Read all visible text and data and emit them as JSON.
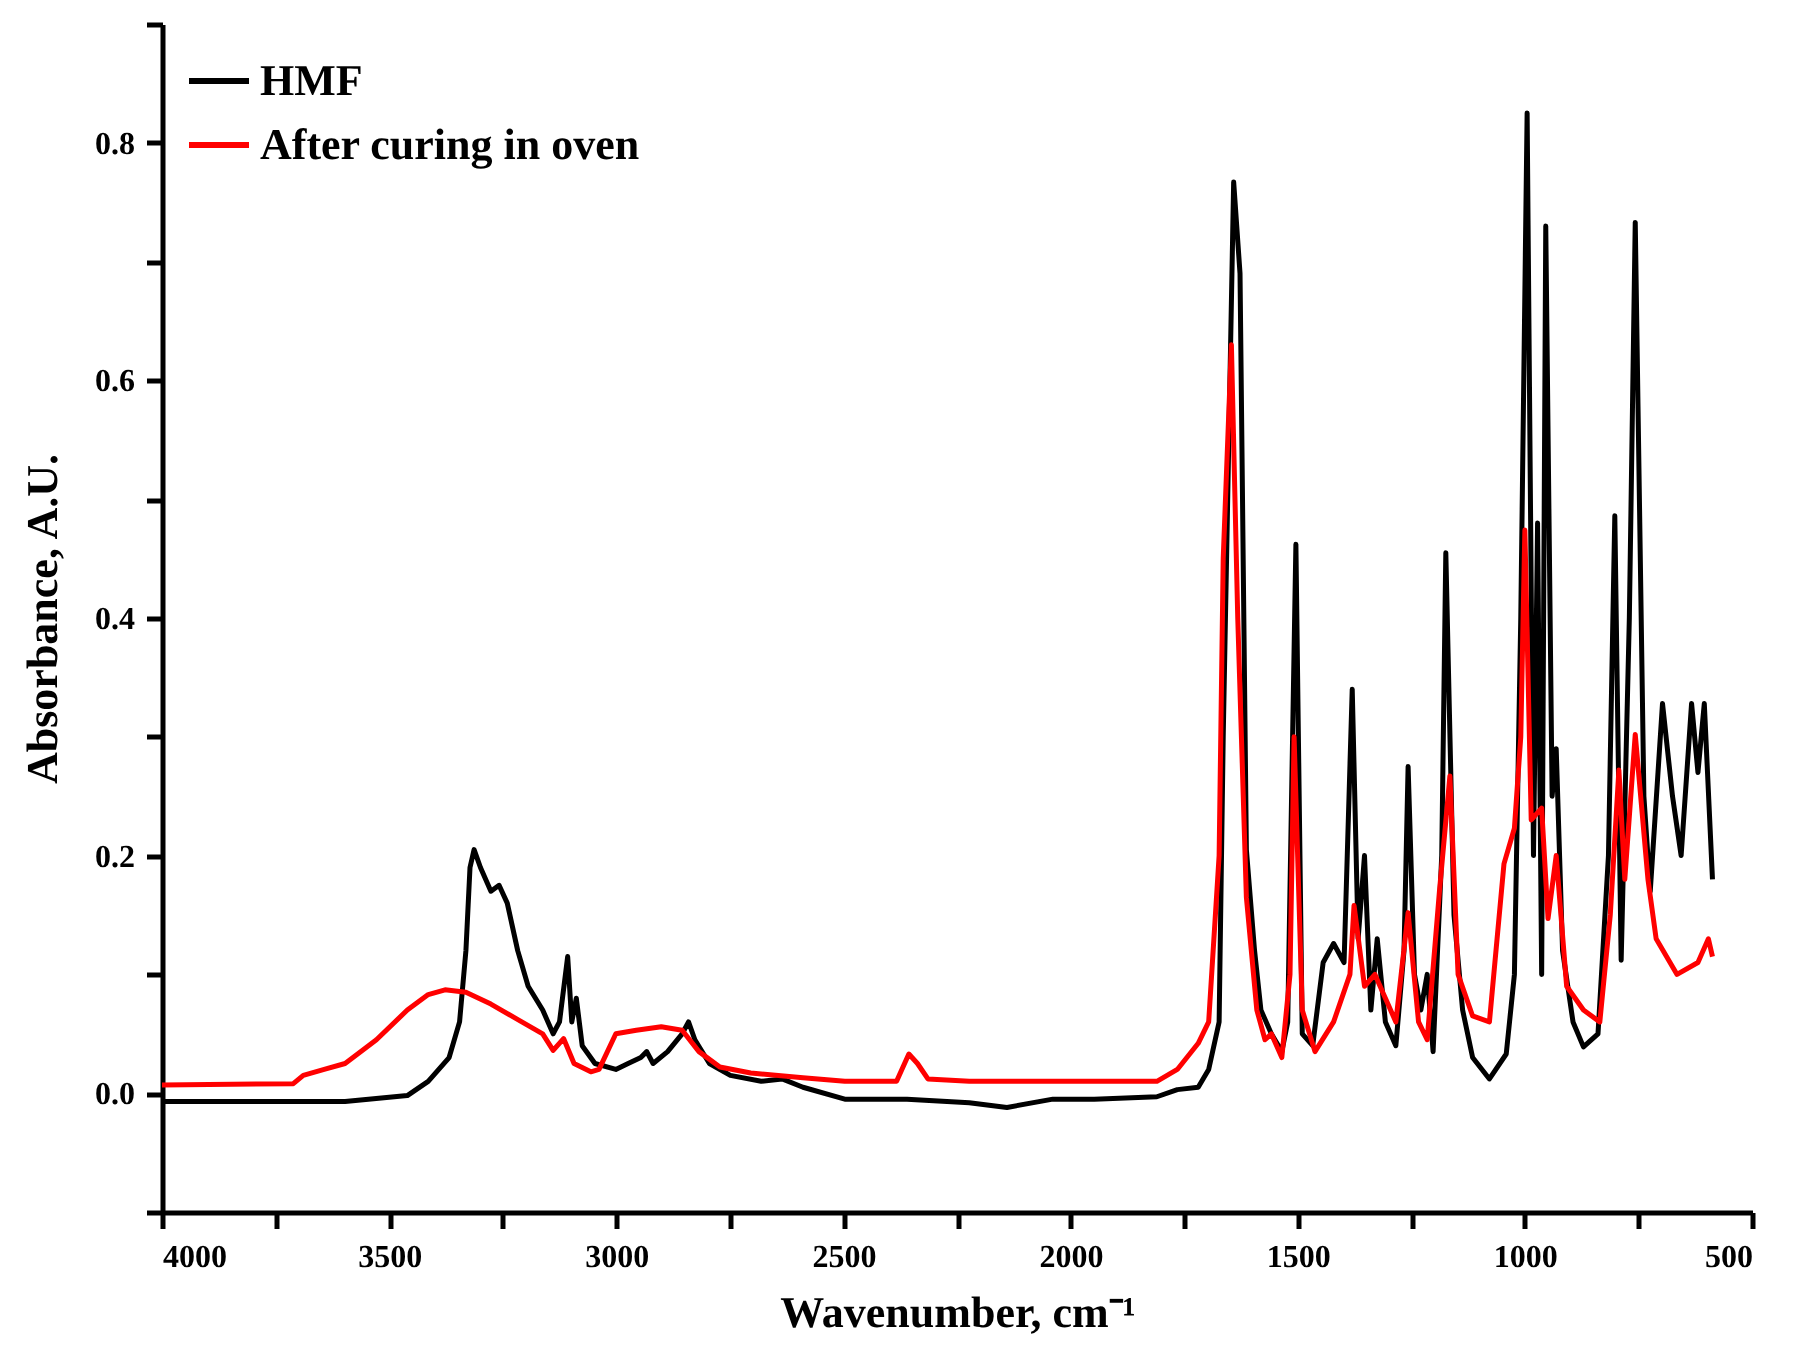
{
  "chart_data": {
    "type": "line",
    "xlabel": "Wavenumber, cm⁻¹",
    "ylabel": "Absorbance, A.U.",
    "xlim": [
      4000,
      500
    ],
    "ylim": [
      -0.1,
      0.9
    ],
    "xticks": [
      4000,
      {
        "value": 3750,
        "label": null
      },
      3500,
      {
        "value": 3250,
        "label": null
      },
      3000,
      {
        "value": 2750,
        "label": null
      },
      2500,
      {
        "value": 2250,
        "label": null
      },
      2000,
      {
        "value": 1750,
        "label": null
      },
      1500,
      {
        "value": 1250,
        "label": null
      },
      1000,
      {
        "value": 750,
        "label": null
      },
      500
    ],
    "yticks": [
      {
        "value": -0.1,
        "label": null
      },
      {
        "value": 0,
        "label": "0.0"
      },
      {
        "value": 0.1,
        "label": null
      },
      0.2,
      {
        "value": 0.3,
        "label": null
      },
      0.4,
      {
        "value": 0.5,
        "label": null
      },
      0.6,
      {
        "value": 0.7,
        "label": null
      },
      0.8,
      {
        "value": 0.9,
        "label": null
      }
    ],
    "grid": false,
    "legend": "top left",
    "marker": "none",
    "line_style": "solid",
    "series": [
      {
        "name": "HMF",
        "color": "#000000",
        "x": [
          4000,
          3597,
          3460,
          3414,
          3368,
          3345,
          3331,
          3322,
          3313,
          3299,
          3276,
          3258,
          3240,
          3217,
          3194,
          3162,
          3139,
          3125,
          3107,
          3098,
          3088,
          3075,
          3047,
          3001,
          2974,
          2946,
          2933,
          2919,
          2887,
          2855,
          2841,
          2827,
          2795,
          2749,
          2681,
          2635,
          2589,
          2497,
          2360,
          2223,
          2140,
          2039,
          1948,
          1810,
          1765,
          1719,
          1696,
          1673,
          1664,
          1641,
          1627,
          1613,
          1595,
          1581,
          1558,
          1535,
          1522,
          1504,
          1490,
          1467,
          1444,
          1421,
          1398,
          1380,
          1367,
          1353,
          1339,
          1325,
          1307,
          1284,
          1266,
          1257,
          1243,
          1229,
          1215,
          1202,
          1183,
          1174,
          1156,
          1137,
          1115,
          1078,
          1041,
          1023,
          1009,
          995,
          981,
          972,
          963,
          954,
          940,
          931,
          917,
          894,
          871,
          839,
          816,
          802,
          788,
          770,
          757,
          738,
          724,
          697,
          675,
          656,
          633,
          619,
          605,
          587
        ],
        "values": [
          -0.007,
          -0.007,
          -0.002,
          0.01,
          0.03,
          0.06,
          0.12,
          0.19,
          0.205,
          0.19,
          0.17,
          0.175,
          0.16,
          0.12,
          0.09,
          0.07,
          0.05,
          0.06,
          0.115,
          0.06,
          0.08,
          0.04,
          0.025,
          0.02,
          0.025,
          0.03,
          0.035,
          0.025,
          0.035,
          0.05,
          0.06,
          0.045,
          0.025,
          0.015,
          0.01,
          0.012,
          0.005,
          -0.005,
          -0.005,
          -0.008,
          -0.012,
          -0.005,
          -0.005,
          -0.003,
          0.003,
          0.005,
          0.02,
          0.06,
          0.3,
          0.767,
          0.69,
          0.205,
          0.12,
          0.07,
          0.05,
          0.035,
          0.06,
          0.462,
          0.05,
          0.04,
          0.11,
          0.126,
          0.11,
          0.34,
          0.13,
          0.2,
          0.07,
          0.13,
          0.06,
          0.04,
          0.12,
          0.275,
          0.1,
          0.07,
          0.1,
          0.035,
          0.2,
          0.455,
          0.15,
          0.07,
          0.03,
          0.012,
          0.033,
          0.1,
          0.4,
          0.825,
          0.2,
          0.48,
          0.1,
          0.73,
          0.25,
          0.29,
          0.12,
          0.06,
          0.039,
          0.05,
          0.2,
          0.486,
          0.112,
          0.4,
          0.733,
          0.25,
          0.17,
          0.328,
          0.25,
          0.2,
          0.328,
          0.27,
          0.328,
          0.18
        ]
      },
      {
        "name": "After curing in oven",
        "color": "#ff0000",
        "x": [
          4000,
          3711,
          3689,
          3643,
          3597,
          3528,
          3460,
          3414,
          3377,
          3331,
          3276,
          3208,
          3162,
          3139,
          3116,
          3093,
          3056,
          3038,
          3001,
          2956,
          2901,
          2855,
          2818,
          2772,
          2704,
          2589,
          2497,
          2383,
          2356,
          2337,
          2314,
          2223,
          1994,
          1810,
          1765,
          1719,
          1696,
          1673,
          1664,
          1646,
          1632,
          1613,
          1590,
          1572,
          1558,
          1535,
          1517,
          1508,
          1490,
          1462,
          1421,
          1385,
          1376,
          1353,
          1330,
          1307,
          1284,
          1257,
          1234,
          1215,
          1188,
          1165,
          1147,
          1115,
          1078,
          1046,
          1023,
          1009,
          1000,
          986,
          963,
          949,
          931,
          908,
          871,
          835,
          812,
          793,
          780,
          757,
          729,
          711,
          665,
          619,
          596,
          587
        ],
        "values": [
          0.007,
          0.008,
          0.015,
          0.02,
          0.025,
          0.045,
          0.07,
          0.083,
          0.087,
          0.085,
          0.075,
          0.06,
          0.05,
          0.036,
          0.046,
          0.025,
          0.018,
          0.02,
          0.05,
          0.053,
          0.056,
          0.053,
          0.035,
          0.022,
          0.017,
          0.013,
          0.01,
          0.01,
          0.033,
          0.025,
          0.012,
          0.01,
          0.01,
          0.01,
          0.02,
          0.042,
          0.06,
          0.2,
          0.45,
          0.63,
          0.4,
          0.165,
          0.07,
          0.045,
          0.05,
          0.03,
          0.1,
          0.3,
          0.07,
          0.035,
          0.06,
          0.1,
          0.158,
          0.09,
          0.1,
          0.08,
          0.06,
          0.152,
          0.06,
          0.045,
          0.17,
          0.267,
          0.1,
          0.065,
          0.06,
          0.193,
          0.223,
          0.3,
          0.474,
          0.23,
          0.24,
          0.147,
          0.2,
          0.09,
          0.07,
          0.06,
          0.15,
          0.272,
          0.18,
          0.302,
          0.18,
          0.13,
          0.1,
          0.11,
          0.13,
          0.115
        ]
      }
    ]
  }
}
